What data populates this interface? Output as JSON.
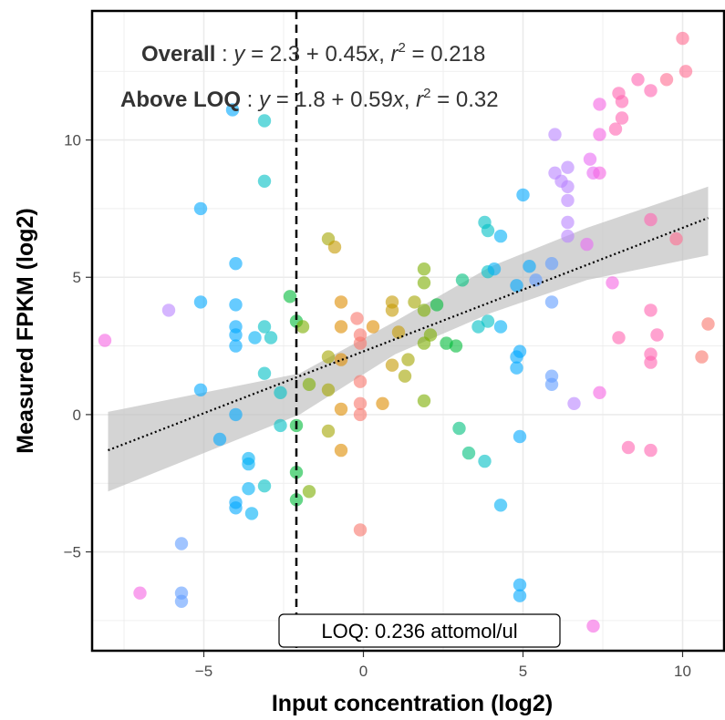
{
  "chart_data": {
    "type": "scatter",
    "xlabel": "Input concentration (log2)",
    "ylabel": "Measured FPKM (log2)",
    "xlim": [
      -8.5,
      11.3
    ],
    "ylim": [
      -8.6,
      14.7
    ],
    "x_ticks": [
      -5,
      0,
      5,
      10
    ],
    "y_ticks": [
      -5,
      0,
      5,
      10
    ],
    "x_tick_labels": [
      "−5",
      "0",
      "5",
      "10"
    ],
    "y_tick_labels": [
      "−5",
      "0",
      "5",
      "10"
    ],
    "grid": true,
    "legend": "none",
    "loq_x": -2.1,
    "loq_label": "LOQ: 0.236 attomol/ul",
    "annotations": {
      "overall": {
        "label": "Overall",
        "sep": " : ",
        "var_y": "y",
        "formula": " = 2.3 + 0.45",
        "var_x": "x",
        "comma": ",  ",
        "var_r": "r",
        "sup": "2",
        "r2_value": " = 0.218"
      },
      "above_loq": {
        "label": "Above LOQ",
        "sep": " : ",
        "var_y": "y",
        "formula": " = 1.8 + 0.59",
        "var_x": "x",
        "comma": ",  ",
        "var_r": "r",
        "sup": "2",
        "r2_value": " = 0.32"
      }
    },
    "regression": {
      "intercept": 2.3,
      "slope": 0.45,
      "band": [
        [
          -8.0,
          -2.8,
          0.1
        ],
        [
          -5.0,
          -1.4,
          0.8
        ],
        [
          -2.0,
          0.0,
          1.5
        ],
        [
          1.0,
          2.2,
          3.4
        ],
        [
          4.0,
          3.7,
          5.4
        ],
        [
          7.0,
          4.9,
          6.8
        ],
        [
          10.8,
          5.8,
          8.3
        ]
      ]
    },
    "colors": {
      "band": "#bdbdbd",
      "line": "#000000",
      "loq_line": "#000000",
      "grid": "#ebebeb"
    },
    "points": [
      {
        "x": -8.1,
        "y": 2.7,
        "color": "#f564e3"
      },
      {
        "x": -7.0,
        "y": -6.5,
        "color": "#f564e3"
      },
      {
        "x": -6.1,
        "y": 3.8,
        "color": "#b983ff"
      },
      {
        "x": -5.7,
        "y": -4.7,
        "color": "#619cff"
      },
      {
        "x": -5.7,
        "y": -6.5,
        "color": "#619cff"
      },
      {
        "x": -5.7,
        "y": -6.8,
        "color": "#619cff"
      },
      {
        "x": -5.1,
        "y": 7.5,
        "color": "#00a9ff"
      },
      {
        "x": -5.1,
        "y": 4.1,
        "color": "#00a9ff"
      },
      {
        "x": -5.1,
        "y": 0.9,
        "color": "#00a9ff"
      },
      {
        "x": -4.5,
        "y": -0.9,
        "color": "#00a9ff"
      },
      {
        "x": -4.1,
        "y": 11.1,
        "color": "#00a9ff"
      },
      {
        "x": -4.0,
        "y": 5.5,
        "color": "#00a9ff"
      },
      {
        "x": -4.0,
        "y": 4.0,
        "color": "#00a9ff"
      },
      {
        "x": -4.0,
        "y": 3.2,
        "color": "#00a9ff"
      },
      {
        "x": -4.0,
        "y": 2.9,
        "color": "#00a9ff"
      },
      {
        "x": -4.0,
        "y": 2.5,
        "color": "#00a9ff"
      },
      {
        "x": -4.0,
        "y": 0.0,
        "color": "#00a9ff"
      },
      {
        "x": -4.0,
        "y": -3.2,
        "color": "#00a9ff"
      },
      {
        "x": -4.0,
        "y": -3.4,
        "color": "#00a9ff"
      },
      {
        "x": -3.6,
        "y": -1.6,
        "color": "#00b0f6"
      },
      {
        "x": -3.6,
        "y": -1.8,
        "color": "#00b0f6"
      },
      {
        "x": -3.6,
        "y": -2.7,
        "color": "#00b0f6"
      },
      {
        "x": -3.5,
        "y": -3.6,
        "color": "#00b0f6"
      },
      {
        "x": -3.4,
        "y": 2.8,
        "color": "#00b0f6"
      },
      {
        "x": -3.1,
        "y": 10.7,
        "color": "#00bfc4"
      },
      {
        "x": -3.1,
        "y": 8.5,
        "color": "#00bfc4"
      },
      {
        "x": -3.1,
        "y": 3.2,
        "color": "#00bfc4"
      },
      {
        "x": -3.1,
        "y": 1.5,
        "color": "#00bfc4"
      },
      {
        "x": -3.1,
        "y": -2.6,
        "color": "#00bfc4"
      },
      {
        "x": -2.9,
        "y": 2.8,
        "color": "#00bfc4"
      },
      {
        "x": -2.6,
        "y": 0.8,
        "color": "#00bfc4"
      },
      {
        "x": -2.6,
        "y": -0.4,
        "color": "#00bfc4"
      },
      {
        "x": -2.3,
        "y": 4.3,
        "color": "#00ba38"
      },
      {
        "x": -2.1,
        "y": 3.4,
        "color": "#00ba38"
      },
      {
        "x": -2.1,
        "y": -0.4,
        "color": "#00ba38"
      },
      {
        "x": -2.1,
        "y": -2.1,
        "color": "#00ba38"
      },
      {
        "x": -2.1,
        "y": -3.1,
        "color": "#00ba38"
      },
      {
        "x": -1.9,
        "y": 3.2,
        "color": "#7cae00"
      },
      {
        "x": -1.7,
        "y": 1.1,
        "color": "#7cae00"
      },
      {
        "x": -1.7,
        "y": -2.8,
        "color": "#7cae00"
      },
      {
        "x": -1.1,
        "y": 6.4,
        "color": "#a3a500"
      },
      {
        "x": -1.1,
        "y": 2.1,
        "color": "#a3a500"
      },
      {
        "x": -1.1,
        "y": 0.9,
        "color": "#a3a500"
      },
      {
        "x": -1.1,
        "y": -0.6,
        "color": "#a3a500"
      },
      {
        "x": -0.9,
        "y": 6.1,
        "color": "#c49a00"
      },
      {
        "x": -0.7,
        "y": 4.1,
        "color": "#de8c00"
      },
      {
        "x": -0.7,
        "y": 3.2,
        "color": "#de8c00"
      },
      {
        "x": -0.7,
        "y": 2.0,
        "color": "#de8c00"
      },
      {
        "x": -0.7,
        "y": 0.2,
        "color": "#de8c00"
      },
      {
        "x": -0.7,
        "y": -1.3,
        "color": "#de8c00"
      },
      {
        "x": -0.2,
        "y": 3.5,
        "color": "#f8766d"
      },
      {
        "x": -0.1,
        "y": 2.9,
        "color": "#f8766d"
      },
      {
        "x": -0.1,
        "y": 2.6,
        "color": "#f8766d"
      },
      {
        "x": -0.1,
        "y": 1.2,
        "color": "#f8766d"
      },
      {
        "x": -0.1,
        "y": 0.4,
        "color": "#f8766d"
      },
      {
        "x": -0.1,
        "y": 0.0,
        "color": "#f8766d"
      },
      {
        "x": -0.1,
        "y": -4.2,
        "color": "#f8766d"
      },
      {
        "x": 0.3,
        "y": 3.2,
        "color": "#de8c00"
      },
      {
        "x": 0.6,
        "y": 0.4,
        "color": "#de8c00"
      },
      {
        "x": 0.9,
        "y": 4.1,
        "color": "#c49a00"
      },
      {
        "x": 0.9,
        "y": 3.8,
        "color": "#c49a00"
      },
      {
        "x": 0.9,
        "y": 1.8,
        "color": "#c49a00"
      },
      {
        "x": 1.1,
        "y": 3.0,
        "color": "#c49a00"
      },
      {
        "x": 1.3,
        "y": 1.4,
        "color": "#a3a500"
      },
      {
        "x": 1.4,
        "y": 2.0,
        "color": "#a3a500"
      },
      {
        "x": 1.6,
        "y": 4.1,
        "color": "#a3a500"
      },
      {
        "x": 1.9,
        "y": 5.3,
        "color": "#7cae00"
      },
      {
        "x": 1.9,
        "y": 4.8,
        "color": "#7cae00"
      },
      {
        "x": 1.9,
        "y": 3.8,
        "color": "#7cae00"
      },
      {
        "x": 1.9,
        "y": 2.6,
        "color": "#7cae00"
      },
      {
        "x": 1.9,
        "y": 0.5,
        "color": "#7cae00"
      },
      {
        "x": 2.1,
        "y": 2.9,
        "color": "#7cae00"
      },
      {
        "x": 2.3,
        "y": 4.0,
        "color": "#00ba38"
      },
      {
        "x": 2.6,
        "y": 2.6,
        "color": "#00ba38"
      },
      {
        "x": 2.9,
        "y": 2.5,
        "color": "#00ba38"
      },
      {
        "x": 3.1,
        "y": 4.9,
        "color": "#00bf7d"
      },
      {
        "x": 3.0,
        "y": -0.5,
        "color": "#00bf7d"
      },
      {
        "x": 3.3,
        "y": -1.4,
        "color": "#00bf7d"
      },
      {
        "x": 3.6,
        "y": 3.2,
        "color": "#00bfc4"
      },
      {
        "x": 3.8,
        "y": 7.0,
        "color": "#00bfc4"
      },
      {
        "x": 3.9,
        "y": 6.7,
        "color": "#00bfc4"
      },
      {
        "x": 3.9,
        "y": 5.2,
        "color": "#00bfc4"
      },
      {
        "x": 3.9,
        "y": 3.4,
        "color": "#00bfc4"
      },
      {
        "x": 3.8,
        "y": -1.7,
        "color": "#00bfc4"
      },
      {
        "x": 4.1,
        "y": 5.3,
        "color": "#00b0f6"
      },
      {
        "x": 4.3,
        "y": 6.5,
        "color": "#00b0f6"
      },
      {
        "x": 4.3,
        "y": 3.2,
        "color": "#00b0f6"
      },
      {
        "x": 4.3,
        "y": -3.3,
        "color": "#00b0f6"
      },
      {
        "x": 4.8,
        "y": 4.7,
        "color": "#00a9ff"
      },
      {
        "x": 4.8,
        "y": 2.1,
        "color": "#00a9ff"
      },
      {
        "x": 4.8,
        "y": 1.7,
        "color": "#00a9ff"
      },
      {
        "x": 5.0,
        "y": 8.0,
        "color": "#00a9ff"
      },
      {
        "x": 4.9,
        "y": 2.3,
        "color": "#00a9ff"
      },
      {
        "x": 4.9,
        "y": -0.8,
        "color": "#00a9ff"
      },
      {
        "x": 4.9,
        "y": -6.2,
        "color": "#00a9ff"
      },
      {
        "x": 4.9,
        "y": -6.6,
        "color": "#00a9ff"
      },
      {
        "x": 5.2,
        "y": 5.4,
        "color": "#00a9ff"
      },
      {
        "x": 5.4,
        "y": 4.9,
        "color": "#619cff"
      },
      {
        "x": 5.9,
        "y": 5.5,
        "color": "#619cff"
      },
      {
        "x": 5.9,
        "y": 4.1,
        "color": "#619cff"
      },
      {
        "x": 5.9,
        "y": 1.4,
        "color": "#619cff"
      },
      {
        "x": 5.9,
        "y": 1.1,
        "color": "#619cff"
      },
      {
        "x": 6.0,
        "y": 10.2,
        "color": "#b983ff"
      },
      {
        "x": 6.0,
        "y": 8.8,
        "color": "#b983ff"
      },
      {
        "x": 6.2,
        "y": 8.5,
        "color": "#b983ff"
      },
      {
        "x": 6.4,
        "y": 9.0,
        "color": "#b983ff"
      },
      {
        "x": 6.4,
        "y": 8.3,
        "color": "#b983ff"
      },
      {
        "x": 6.4,
        "y": 7.8,
        "color": "#b983ff"
      },
      {
        "x": 6.4,
        "y": 7.0,
        "color": "#b983ff"
      },
      {
        "x": 6.4,
        "y": 6.5,
        "color": "#b983ff"
      },
      {
        "x": 6.6,
        "y": 0.4,
        "color": "#b983ff"
      },
      {
        "x": 7.0,
        "y": 6.2,
        "color": "#e76bf3"
      },
      {
        "x": 7.1,
        "y": 9.3,
        "color": "#e76bf3"
      },
      {
        "x": 7.2,
        "y": 8.8,
        "color": "#e76bf3"
      },
      {
        "x": 7.4,
        "y": 11.3,
        "color": "#f564e3"
      },
      {
        "x": 7.4,
        "y": 10.2,
        "color": "#f564e3"
      },
      {
        "x": 7.4,
        "y": 8.8,
        "color": "#f564e3"
      },
      {
        "x": 7.4,
        "y": 0.8,
        "color": "#f564e3"
      },
      {
        "x": 7.2,
        "y": -7.7,
        "color": "#f564e3"
      },
      {
        "x": 7.8,
        "y": 4.8,
        "color": "#f564e3"
      },
      {
        "x": 7.9,
        "y": 10.4,
        "color": "#ff64b0"
      },
      {
        "x": 8.0,
        "y": 11.7,
        "color": "#ff64b0"
      },
      {
        "x": 8.1,
        "y": 11.4,
        "color": "#ff64b0"
      },
      {
        "x": 8.1,
        "y": 10.8,
        "color": "#ff64b0"
      },
      {
        "x": 8.0,
        "y": 2.8,
        "color": "#ff64b0"
      },
      {
        "x": 8.3,
        "y": -1.2,
        "color": "#ff64b0"
      },
      {
        "x": 8.6,
        "y": 12.2,
        "color": "#ff64b0"
      },
      {
        "x": 9.0,
        "y": 11.8,
        "color": "#ff64b0"
      },
      {
        "x": 9.0,
        "y": 7.1,
        "color": "#ff64b0"
      },
      {
        "x": 9.0,
        "y": 3.8,
        "color": "#ff64b0"
      },
      {
        "x": 9.0,
        "y": 2.2,
        "color": "#ff64b0"
      },
      {
        "x": 9.0,
        "y": 1.9,
        "color": "#ff64b0"
      },
      {
        "x": 9.0,
        "y": -1.3,
        "color": "#ff64b0"
      },
      {
        "x": 9.2,
        "y": 2.9,
        "color": "#ff64b0"
      },
      {
        "x": 9.5,
        "y": 12.2,
        "color": "#ff6c91"
      },
      {
        "x": 9.8,
        "y": 6.4,
        "color": "#ff6c91"
      },
      {
        "x": 10.0,
        "y": 13.7,
        "color": "#ff6c91"
      },
      {
        "x": 10.1,
        "y": 12.5,
        "color": "#ff6c91"
      },
      {
        "x": 10.6,
        "y": 2.1,
        "color": "#f8766d"
      },
      {
        "x": 10.8,
        "y": 3.3,
        "color": "#f8766d"
      }
    ]
  }
}
